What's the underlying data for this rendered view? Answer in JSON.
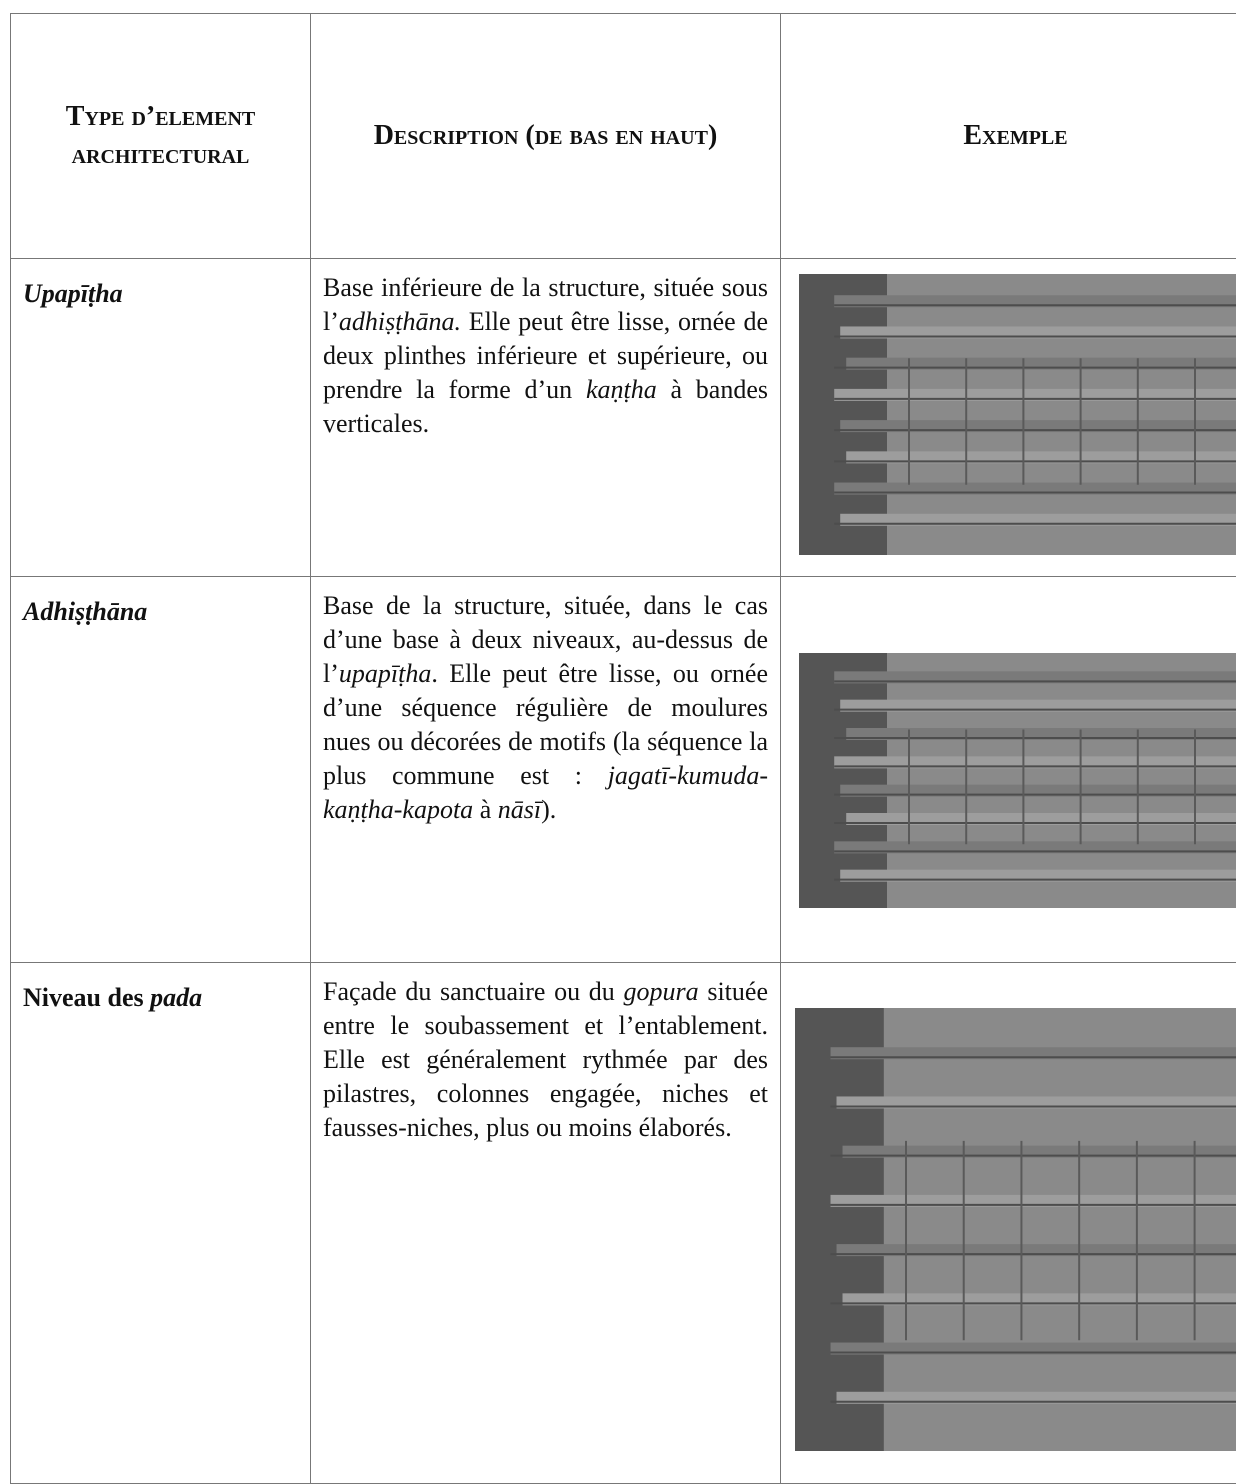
{
  "table": {
    "header": [
      "Type d’element architectural",
      "Description (de bas en haut)",
      "Exemple"
    ],
    "rows": [
      {
        "element": [
          {
            "text": "Upapīṭha",
            "italic": true
          }
        ],
        "description": [
          {
            "text": "Base inférieure de la structure, située sous l’",
            "italic": false
          },
          {
            "text": "adhiṣṭhāna.",
            "italic": true
          },
          {
            "text": " Elle peut être lisse, ornée de deux plinthes inférieure et supérieure, ou prendre la forme d’un ",
            "italic": false
          },
          {
            "text": "kaṇṭha",
            "italic": true
          },
          {
            "text": " à bandes verticales.",
            "italic": false
          }
        ]
      },
      {
        "element": [
          {
            "text": "Adhiṣṭhāna",
            "italic": true
          }
        ],
        "description": [
          {
            "text": "Base de la structure, située, dans le cas d’une base à deux niveaux, au-dessus de l’",
            "italic": false
          },
          {
            "text": "upapīṭha",
            "italic": true
          },
          {
            "text": ". Elle peut être lisse, ou ornée d’une séquence régulière de moulures nues ou décorées de motifs (la séquence la plus commune est : ",
            "italic": false
          },
          {
            "text": "jagatī-kumuda-kaṇṭha-kapota",
            "italic": true
          },
          {
            "text": " à ",
            "italic": false
          },
          {
            "text": "nāsī",
            "italic": true
          },
          {
            "text": ").",
            "italic": false
          }
        ]
      },
      {
        "element": [
          {
            "text": "Niveau des ",
            "italic": false
          },
          {
            "text": "pada",
            "italic": true
          }
        ],
        "description": [
          {
            "text": "Façade du sanctuaire ou du ",
            "italic": false
          },
          {
            "text": "gopura",
            "italic": true
          },
          {
            "text": " située entre le soubassement et l’entablement. Elle est généralement rythmée par des pilastres, colonnes engagée, niches et fausses-niches, plus ou moins élaborés.",
            "italic": false
          }
        ]
      }
    ]
  }
}
